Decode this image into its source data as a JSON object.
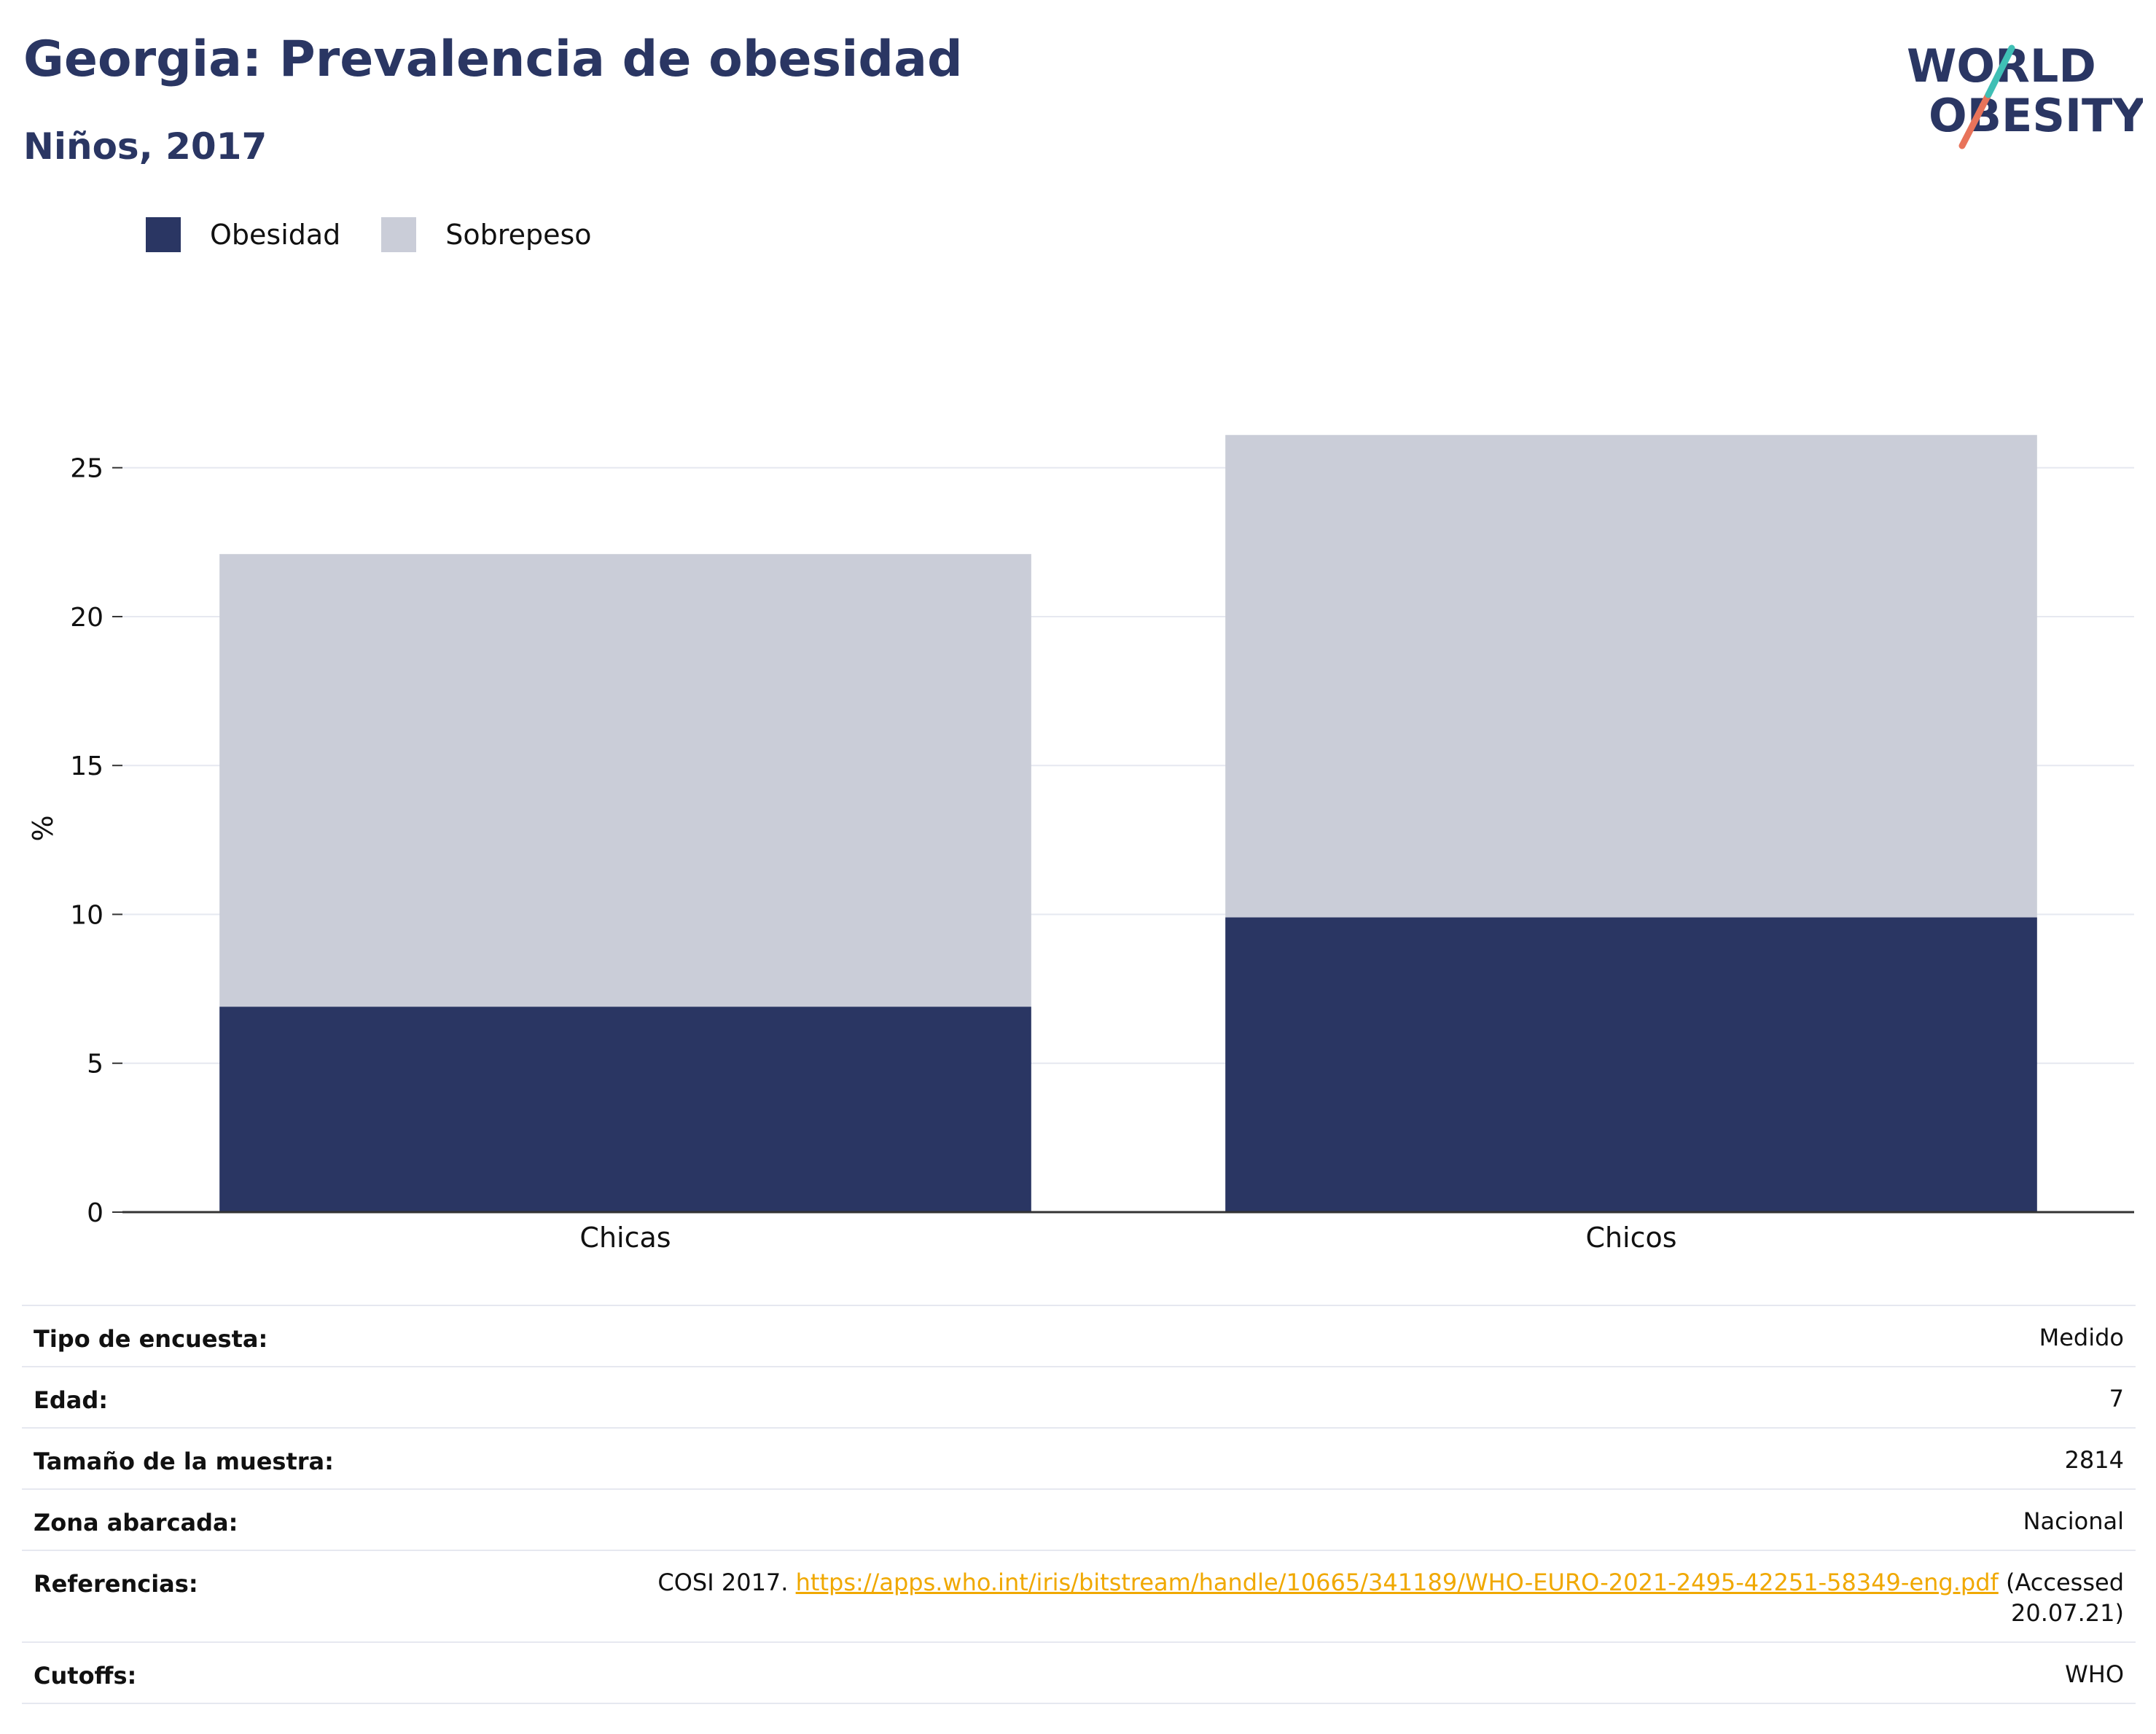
{
  "header": {
    "title": "Georgia: Prevalencia de obesidad",
    "subtitle": "Niños, 2017"
  },
  "logo": {
    "line1": "WORLD",
    "line2": "OBESITY"
  },
  "colors": {
    "obesidad": "#2a3663",
    "sobrepeso": "#cacdd8",
    "title": "#2a3663",
    "link": "#f0a800"
  },
  "chart_data": {
    "type": "bar",
    "stacked": true,
    "categories": [
      "Chicas",
      "Chicos"
    ],
    "series": [
      {
        "name": "Obesidad",
        "values": [
          6.9,
          9.9
        ]
      },
      {
        "name": "Sobrepeso",
        "values": [
          15.2,
          16.2
        ]
      }
    ],
    "ylabel": "%",
    "ylim": [
      0,
      27
    ],
    "yticks": [
      0,
      5,
      10,
      15,
      20,
      25
    ],
    "grid": true,
    "legend_position": "top-left"
  },
  "table": {
    "rows": [
      {
        "label": "Tipo de encuesta:",
        "value": "Medido"
      },
      {
        "label": "Edad:",
        "value": "7"
      },
      {
        "label": "Tamaño de la muestra:",
        "value": "2814"
      },
      {
        "label": "Zona abarcada:",
        "value": "Nacional"
      },
      {
        "label": "Cutoffs:",
        "value": "WHO"
      }
    ],
    "references": {
      "label": "Referencias:",
      "prefix": "COSI 2017.",
      "link": "https://apps.who.int/iris/bitstream/handle/10665/341189/WHO-EURO-2021-2495-42251-58349-eng.pdf",
      "suffix_line1": "(Accessed",
      "suffix_line2": "20.07.21)"
    }
  }
}
